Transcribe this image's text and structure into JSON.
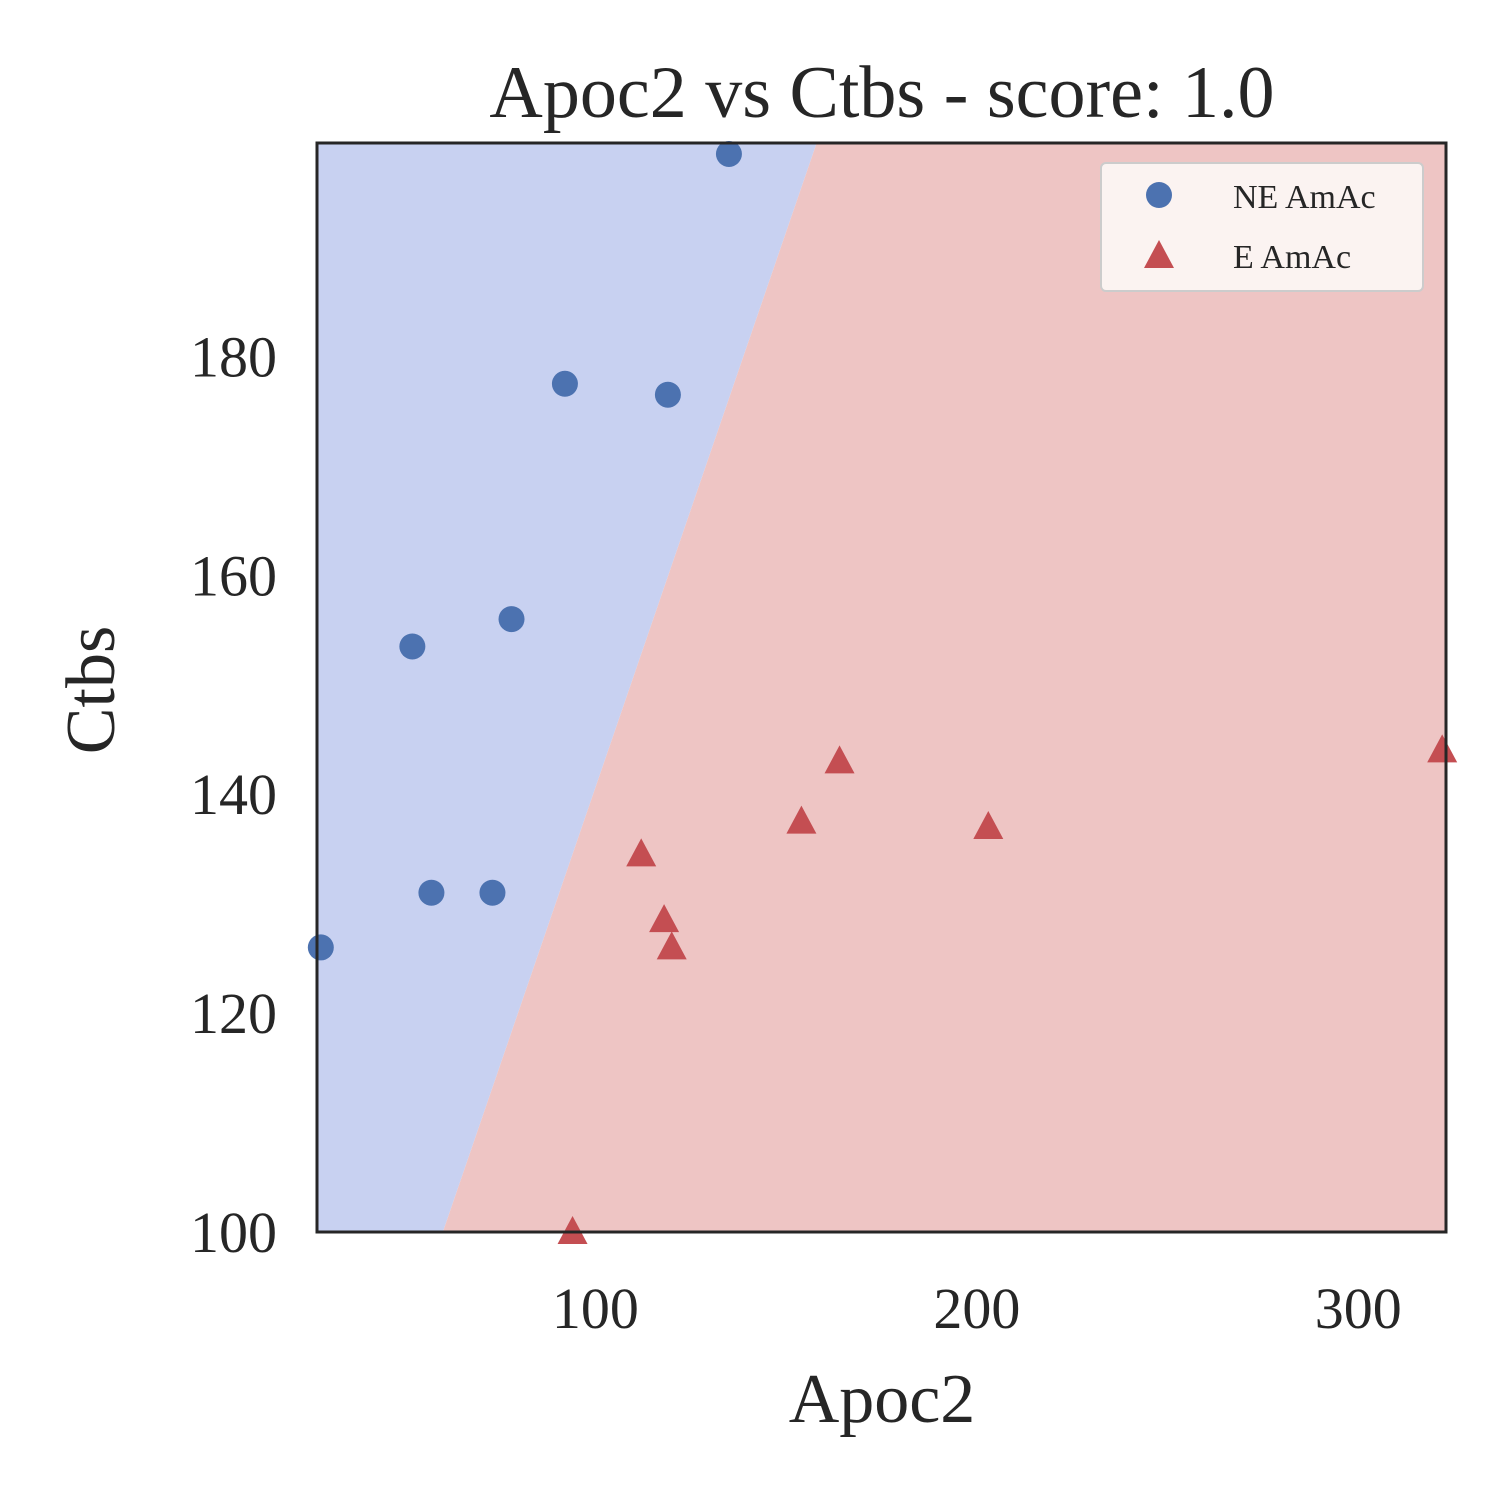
{
  "chart_data": {
    "type": "scatter",
    "title": "Apoc2 vs Ctbs - score: 1.0",
    "xlabel": "Apoc2",
    "ylabel": "Ctbs",
    "xlim": [
      27,
      323
    ],
    "ylim": [
      100,
      199.5
    ],
    "xticks": [
      100,
      200,
      300
    ],
    "yticks": [
      100,
      120,
      140,
      160,
      180
    ],
    "grid": false,
    "legend_position": "top-right",
    "decision_boundary": {
      "points": [
        [
          60,
          100
        ],
        [
          158,
          199.5
        ]
      ],
      "left_region_class": "NE AmAc",
      "right_region_class": "E AmAc",
      "left_color": "#c8d1f1",
      "right_color": "#eec5c4"
    },
    "series": [
      {
        "name": "NE AmAc",
        "marker": "circle",
        "color": "#4c72b0",
        "points": [
          [
            135,
            198.5
          ],
          [
            92,
            177.5
          ],
          [
            119,
            176.5
          ],
          [
            52,
            153.5
          ],
          [
            78,
            156
          ],
          [
            57,
            131
          ],
          [
            73,
            131
          ],
          [
            28,
            126
          ]
        ]
      },
      {
        "name": "E AmAc",
        "marker": "triangle",
        "color": "#c44e52",
        "points": [
          [
            94,
            100
          ],
          [
            112,
            134.5
          ],
          [
            118,
            128.5
          ],
          [
            120,
            126
          ],
          [
            154,
            137.5
          ],
          [
            164,
            143
          ],
          [
            203,
            137
          ],
          [
            322,
            144
          ]
        ]
      }
    ]
  }
}
